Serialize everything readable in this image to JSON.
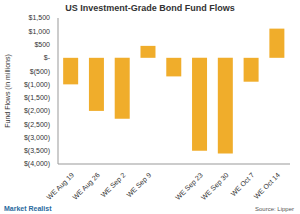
{
  "chart_data": {
    "type": "bar",
    "title": "US Investment-Grade Bond Fund Flows",
    "y_label": "Fund Flows (in millions)",
    "categories": [
      "WE Aug 19",
      "WE Aug 26",
      "WE Sep 2",
      "WE Sep 9",
      null,
      "WE Sep 23",
      "WE Sep 30",
      "WE Oct 7",
      "WE Oct 14"
    ],
    "values": [
      -1000,
      -2000,
      -2300,
      450,
      -700,
      -3500,
      -3600,
      -900,
      1100
    ],
    "color": "#F0AD2B",
    "ylim": [
      -4000,
      1500
    ],
    "yticks": [
      {
        "value": -4000,
        "label": "$(4,000)"
      },
      {
        "value": -3500,
        "label": "$(3,500)"
      },
      {
        "value": -3000,
        "label": "$(3,000)"
      },
      {
        "value": -2500,
        "label": "$(2,500)"
      },
      {
        "value": -2000,
        "label": "$(2,000)"
      },
      {
        "value": -1500,
        "label": "$(1,500)"
      },
      {
        "value": -1000,
        "label": "$(1,000)"
      },
      {
        "value": -500,
        "label": "$(500)"
      },
      {
        "value": 0,
        "label": "$-"
      },
      {
        "value": 500,
        "label": "$500"
      },
      {
        "value": 1000,
        "label": "$1,000"
      },
      {
        "value": 1500,
        "label": "$1,500"
      }
    ],
    "grid": false,
    "annotations": [
      "Source: Lipper",
      "Market Realist"
    ]
  }
}
